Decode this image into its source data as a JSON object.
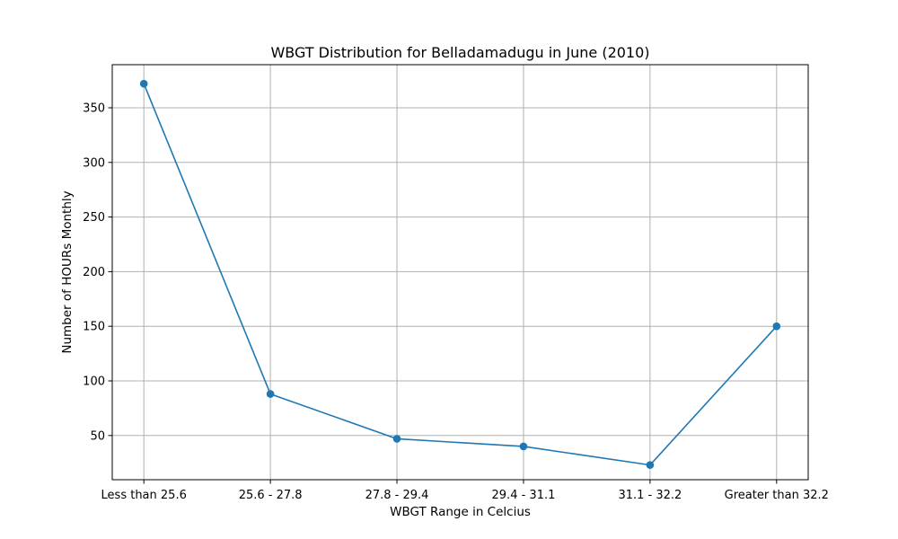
{
  "chart_data": {
    "type": "line",
    "title": "WBGT Distribution for Belladamadugu in June (2010)",
    "xlabel": "WBGT Range in Celcius",
    "ylabel": "Number of HOURs Monthly",
    "categories": [
      "Less than 25.6",
      "25.6 - 27.8",
      "27.8 - 29.4",
      "29.4 - 31.1",
      "31.1 - 32.2",
      "Greater than 32.2"
    ],
    "series": [
      {
        "values": [
          372,
          88,
          47,
          40,
          23,
          150
        ],
        "color": "#1f77b4",
        "marker": "circle"
      }
    ],
    "ylim": [
      9.55,
      389.45
    ],
    "yticks": [
      50,
      100,
      150,
      200,
      250,
      300,
      350
    ],
    "grid": true,
    "legend": "none"
  }
}
